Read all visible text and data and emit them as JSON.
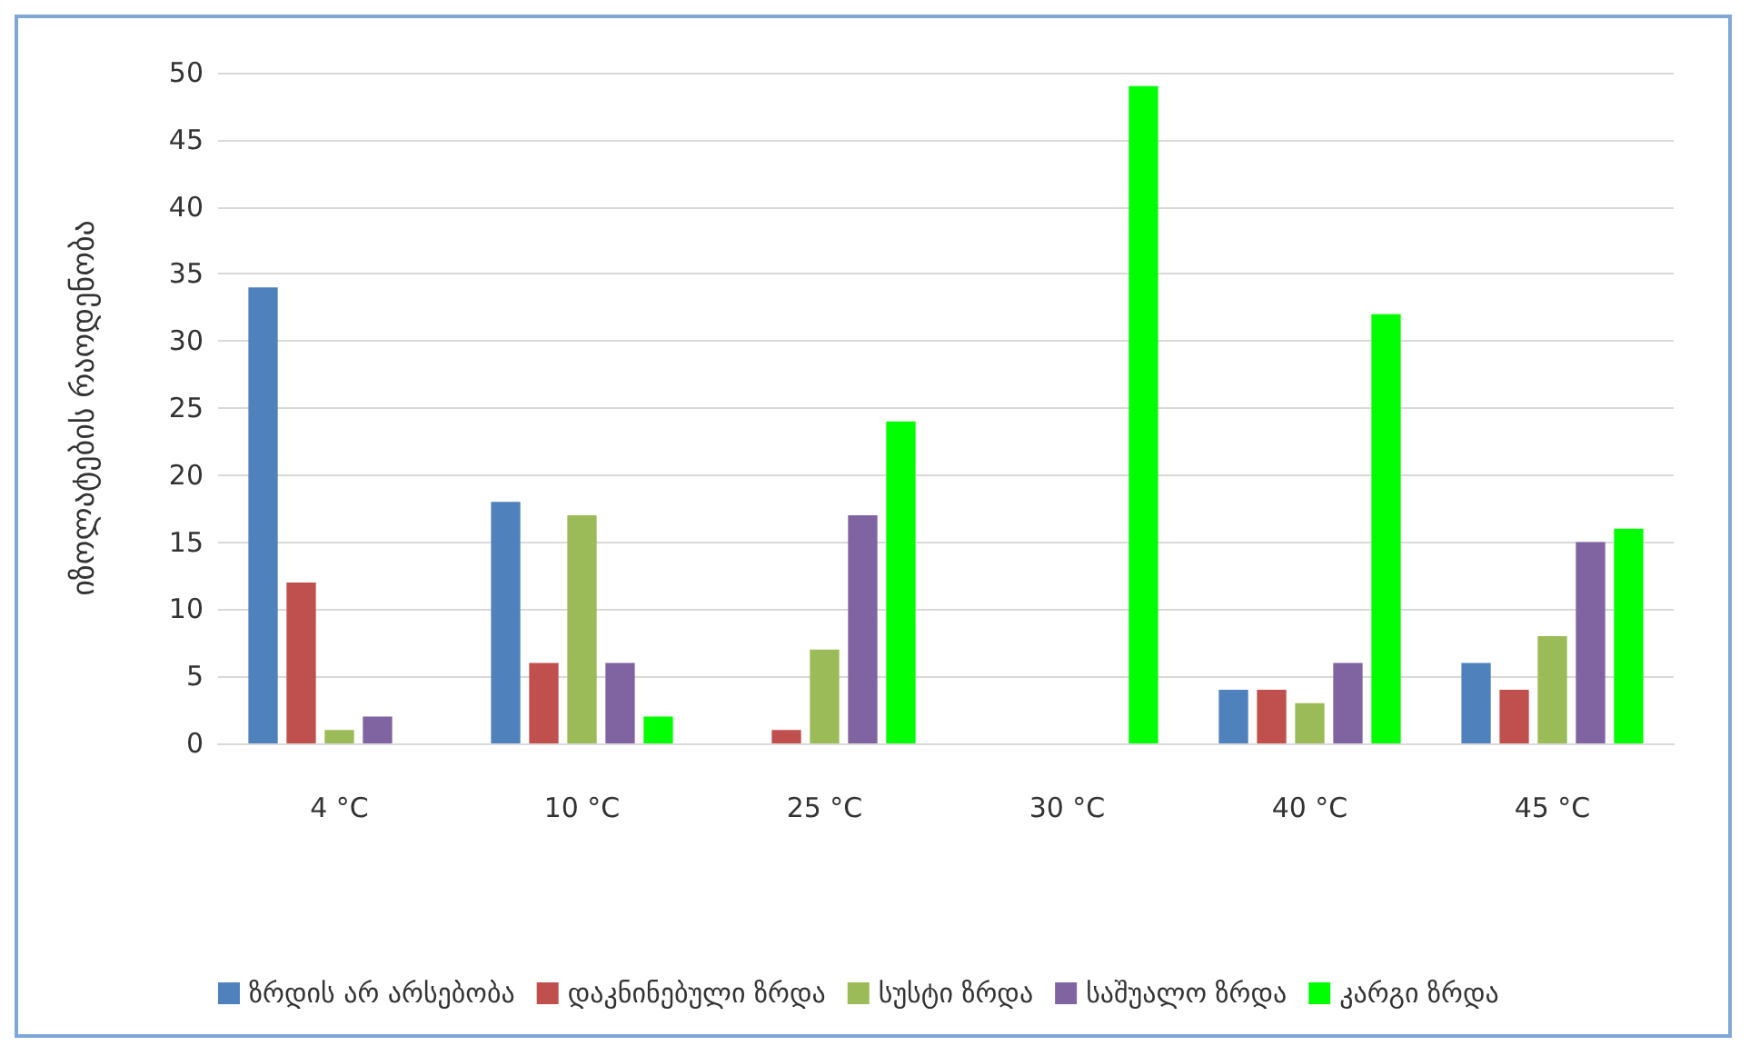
{
  "chart_data": {
    "type": "bar",
    "ylabel": "იზოლატების რაოდენობა",
    "categories": [
      "4 °C",
      "10 °C",
      "25 °C",
      "30 °C",
      "40 °C",
      "45 °C"
    ],
    "series": [
      {
        "name": "ზრდის არ არსებობა",
        "color": "#4f81bd",
        "values": [
          34,
          18,
          0,
          0,
          4,
          6
        ]
      },
      {
        "name": "დაკნინებული ზრდა",
        "color": "#c0504d",
        "values": [
          12,
          6,
          1,
          0,
          4,
          4
        ]
      },
      {
        "name": "სუსტი ზრდა",
        "color": "#9bbb59",
        "values": [
          1,
          17,
          7,
          0,
          3,
          8
        ]
      },
      {
        "name": "საშუალო ზრდა",
        "color": "#8064a2",
        "values": [
          2,
          6,
          17,
          0,
          6,
          15
        ]
      },
      {
        "name": "კარგი ზრდა",
        "color": "#00ff00",
        "values": [
          0,
          2,
          24,
          49,
          32,
          16
        ]
      }
    ],
    "ylim": [
      0,
      50
    ],
    "yticks": [
      0,
      5,
      10,
      15,
      20,
      25,
      30,
      35,
      40,
      45,
      50
    ],
    "grid": "y",
    "legend": "bottom"
  }
}
